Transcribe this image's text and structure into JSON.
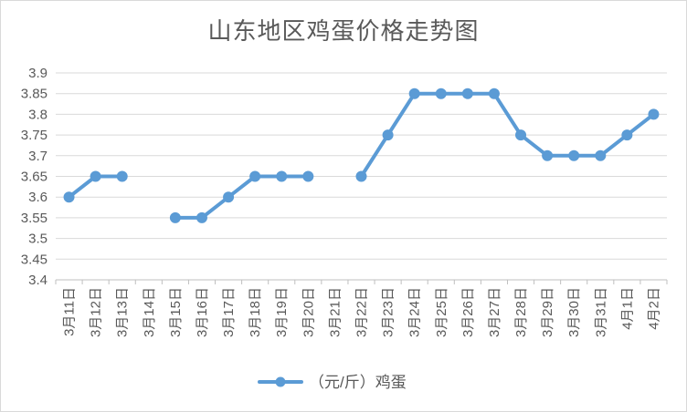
{
  "chart_data": {
    "type": "line",
    "title": "山东地区鸡蛋价格走势图",
    "xlabel": "",
    "ylabel": "",
    "categories": [
      "3月11日",
      "3月12日",
      "3月13日",
      "3月14日",
      "3月15日",
      "3月16日",
      "3月17日",
      "3月18日",
      "3月19日",
      "3月20日",
      "3月21日",
      "3月22日",
      "3月23日",
      "3月24日",
      "3月25日",
      "3月26日",
      "3月27日",
      "3月28日",
      "3月29日",
      "3月30日",
      "3月31日",
      "4月1日",
      "4月2日"
    ],
    "series": [
      {
        "name": "（元/斤）鸡蛋",
        "values": [
          3.6,
          3.65,
          3.65,
          null,
          3.55,
          3.55,
          3.6,
          3.65,
          3.65,
          3.65,
          null,
          3.65,
          3.75,
          3.85,
          3.85,
          3.85,
          3.85,
          3.75,
          3.7,
          3.7,
          3.7,
          3.75,
          3.8
        ],
        "color": "#5b9bd5"
      }
    ],
    "ylim": [
      3.4,
      3.9
    ],
    "yticks": [
      "3.4",
      "3.45",
      "3.5",
      "3.55",
      "3.6",
      "3.65",
      "3.7",
      "3.75",
      "3.8",
      "3.85",
      "3.9"
    ],
    "grid": true,
    "legend": "bottom-center"
  }
}
